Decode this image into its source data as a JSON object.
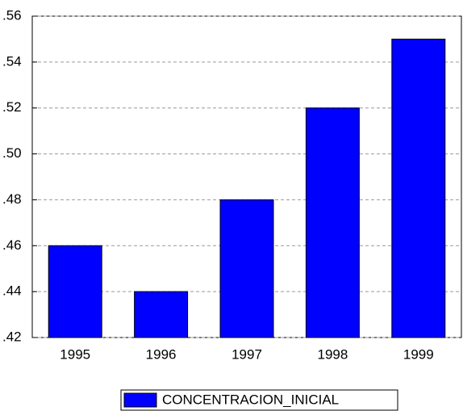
{
  "chart_data": {
    "type": "bar",
    "categories": [
      "1995",
      "1996",
      "1997",
      "1998",
      "1999"
    ],
    "series": [
      {
        "name": "CONCENTRACION_INICIAL",
        "color": "#0000ff",
        "values": [
          0.46,
          0.44,
          0.48,
          0.52,
          0.55
        ]
      }
    ],
    "ylim": [
      0.42,
      0.56
    ],
    "yticks": [
      {
        "value": 0.42,
        "label": ".42"
      },
      {
        "value": 0.44,
        "label": ".44"
      },
      {
        "value": 0.46,
        "label": ".46"
      },
      {
        "value": 0.48,
        "label": ".48"
      },
      {
        "value": 0.5,
        "label": ".50"
      },
      {
        "value": 0.52,
        "label": ".52"
      },
      {
        "value": 0.54,
        "label": ".54"
      },
      {
        "value": 0.56,
        "label": ".56"
      }
    ],
    "grid": true,
    "legend": "bottom"
  }
}
